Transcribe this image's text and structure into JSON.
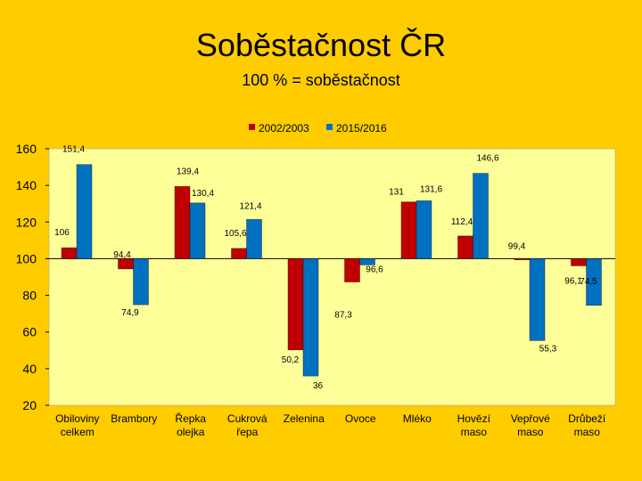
{
  "title": "Soběstačnost ČR",
  "subtitle": "100 % = soběstačnost",
  "chart_data": {
    "type": "bar",
    "baseline": 100,
    "ylim": [
      20,
      160
    ],
    "yticks": [
      20,
      40,
      60,
      80,
      100,
      120,
      140,
      160
    ],
    "legend_position": "top",
    "categories": [
      [
        "Obiloviny",
        "celkem"
      ],
      [
        "Brambory"
      ],
      [
        "Řepka",
        "olejka"
      ],
      [
        "Cukrová",
        "řepa"
      ],
      [
        "Zelenina"
      ],
      [
        "Ovoce"
      ],
      [
        "Mléko"
      ],
      [
        "Hovězí",
        "maso"
      ],
      [
        "Vepřové",
        "maso"
      ],
      [
        "Drůbeží",
        "maso"
      ]
    ],
    "series": [
      {
        "name": "2002/2003",
        "color": "#C00000",
        "values": [
          106,
          94.4,
          139.4,
          105.6,
          50.2,
          87.3,
          131,
          112.4,
          99.4,
          96.1
        ],
        "labels": [
          "106",
          "94,4",
          "139,4",
          "105,6",
          "50,2",
          "87,3",
          "131",
          "112,4",
          "99,4",
          "96,1"
        ]
      },
      {
        "name": "2015/2016",
        "color": "#0070C0",
        "values": [
          151.4,
          74.9,
          130.4,
          121.4,
          36,
          96.6,
          131.6,
          146.6,
          55.3,
          74.5
        ],
        "labels": [
          "151,4",
          "74,9",
          "130,4",
          "121,4",
          "36",
          "96,6",
          "131,6",
          "146,6",
          "55,3",
          "74,5"
        ]
      }
    ]
  }
}
